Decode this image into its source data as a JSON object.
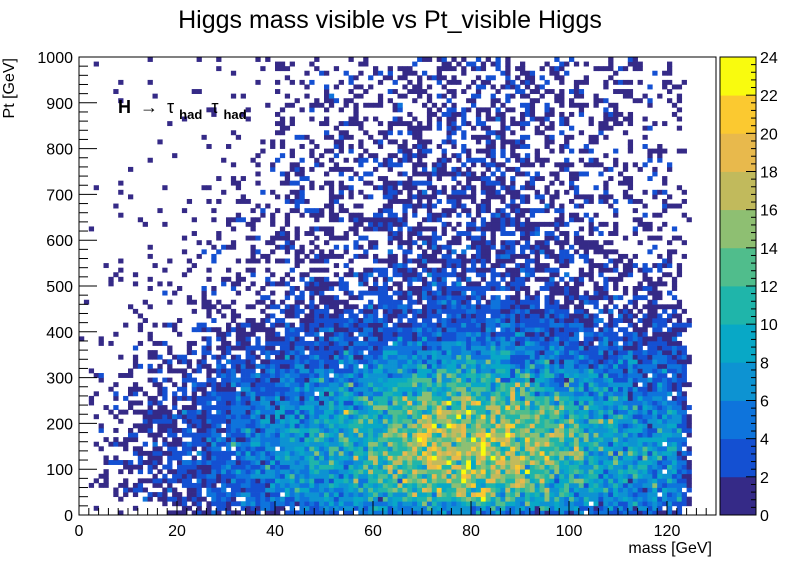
{
  "chart_data": {
    "type": "heatmap",
    "title": "Higgs mass visible vs Pt_visible Higgs",
    "xlabel": "mass [GeV]",
    "ylabel": "Pt [GeV]",
    "xlim": [
      0,
      130
    ],
    "ylim": [
      0,
      1000
    ],
    "x_ticks": [
      "0",
      "20",
      "40",
      "60",
      "80",
      "100",
      "120"
    ],
    "y_ticks": [
      "0",
      "100",
      "200",
      "300",
      "400",
      "500",
      "600",
      "700",
      "800",
      "900",
      "1000"
    ],
    "bins": {
      "x": 130,
      "y": 100
    },
    "colorbar": {
      "range": [
        0,
        24
      ],
      "ticks": [
        "0",
        "2",
        "4",
        "6",
        "8",
        "10",
        "12",
        "14",
        "16",
        "18",
        "20",
        "22",
        "24"
      ],
      "palette": [
        "#352a87",
        "#1450d2",
        "#0e74dc",
        "#0d93d2",
        "#08a8c6",
        "#1fb5aa",
        "#50bd8c",
        "#8ebf72",
        "#c1ba5c",
        "#e8b94c",
        "#fbc930",
        "#f9fb0e"
      ]
    },
    "annotation": {
      "prefix": "H",
      "arrow": "→",
      "tau": "τ",
      "subscript": "had"
    },
    "distribution_peak": {
      "mass": 80,
      "pt": 150,
      "max_count": 24
    }
  }
}
